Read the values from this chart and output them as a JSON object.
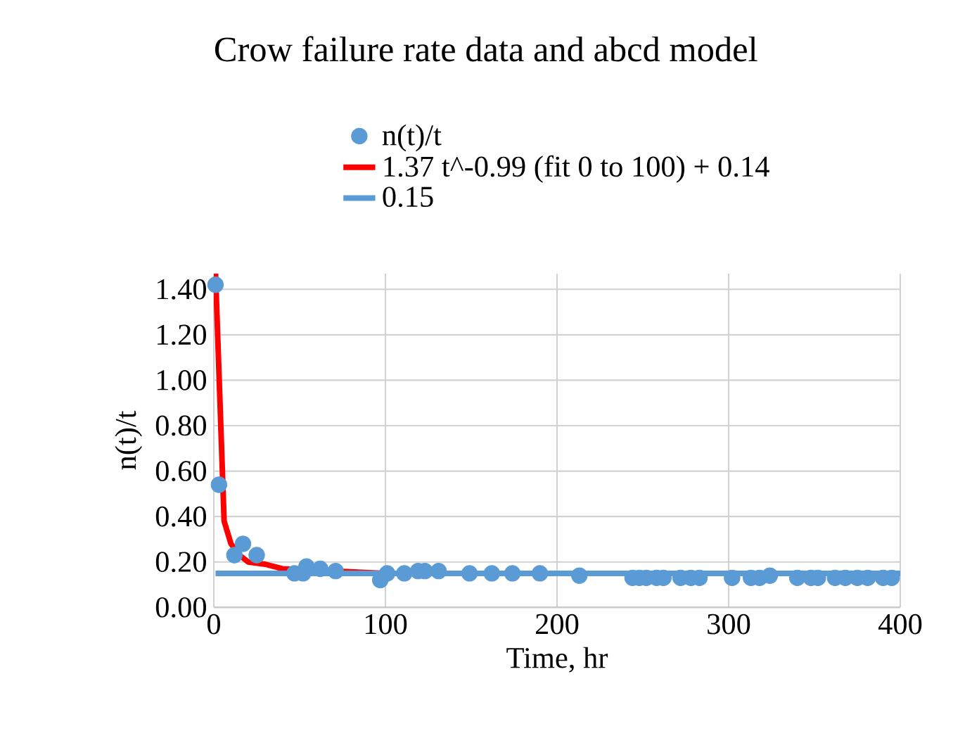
{
  "chart_data": {
    "type": "scatter",
    "title": "Crow failure rate data and abcd model",
    "xlabel": "Time, hr",
    "ylabel": "n(t)/t",
    "xlim": [
      0,
      400
    ],
    "xticks": [
      0,
      100,
      200,
      300,
      400
    ],
    "ylim": [
      0,
      1.47
    ],
    "yticks": [
      {
        "value": 0,
        "label": "0.00"
      },
      {
        "value": 0.2,
        "label": "0.20"
      },
      {
        "value": 0.4,
        "label": "0.40"
      },
      {
        "value": 0.6,
        "label": "0.60"
      },
      {
        "value": 0.8,
        "label": "0.80"
      },
      {
        "value": 1.0,
        "label": "1.00"
      },
      {
        "value": 1.2,
        "label": "1.20"
      },
      {
        "value": 1.4,
        "label": "1.40"
      }
    ],
    "grid": true,
    "legend": "top",
    "series": [
      {
        "name": "n(t)/t",
        "marker": "circle",
        "color": "#5b9bd5",
        "x": [
          1,
          3,
          12,
          17,
          25,
          47,
          52,
          54,
          62,
          71,
          97,
          101,
          111,
          119,
          123,
          131,
          149,
          162,
          174,
          190,
          213,
          244,
          248,
          252,
          258,
          262,
          272,
          278,
          283,
          302,
          313,
          318,
          324,
          340,
          348,
          352,
          362,
          368,
          375,
          381,
          390,
          395
        ],
        "values": [
          1.42,
          0.54,
          0.23,
          0.28,
          0.23,
          0.15,
          0.15,
          0.18,
          0.17,
          0.16,
          0.12,
          0.15,
          0.15,
          0.16,
          0.16,
          0.16,
          0.15,
          0.15,
          0.15,
          0.15,
          0.14,
          0.13,
          0.13,
          0.13,
          0.13,
          0.13,
          0.13,
          0.13,
          0.13,
          0.13,
          0.13,
          0.13,
          0.14,
          0.13,
          0.13,
          0.13,
          0.13,
          0.13,
          0.13,
          0.13,
          0.13,
          0.13
        ]
      },
      {
        "name": "1.37 t^-0.99 (fit 0 to 100) + 0.14",
        "type": "line",
        "marker": "none",
        "color": "#ff0000",
        "x": [
          1,
          6,
          10,
          15,
          20,
          30,
          40,
          100
        ],
        "values": [
          1.47,
          0.38,
          0.28,
          0.23,
          0.2,
          0.19,
          0.17,
          0.15
        ]
      },
      {
        "name": "0.15",
        "type": "line",
        "marker": "none",
        "color": "#5b9bd5",
        "x": [
          1,
          400
        ],
        "values": [
          0.15,
          0.15
        ]
      }
    ]
  }
}
